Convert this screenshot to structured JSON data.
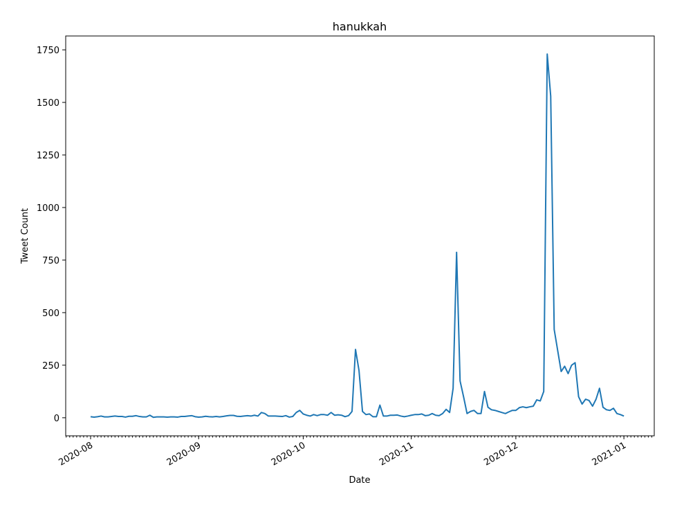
{
  "chart_data": {
    "type": "line",
    "title": "hanukkah",
    "x_label": "Date",
    "y_label": "Tweet Count",
    "color": "#1f77b4",
    "categories": [
      "2020-08",
      null,
      null,
      null,
      null,
      null,
      null,
      null,
      null,
      null,
      null,
      null,
      null,
      null,
      null,
      null,
      null,
      null,
      null,
      null,
      null,
      null,
      null,
      null,
      null,
      null,
      null,
      null,
      null,
      null,
      null,
      "2020-09",
      null,
      null,
      null,
      null,
      null,
      null,
      null,
      null,
      null,
      null,
      null,
      null,
      null,
      null,
      null,
      null,
      null,
      null,
      null,
      null,
      null,
      null,
      null,
      null,
      null,
      null,
      null,
      null,
      null,
      "2020-10",
      null,
      null,
      null,
      null,
      null,
      null,
      null,
      null,
      null,
      null,
      null,
      null,
      null,
      null,
      null,
      null,
      null,
      null,
      null,
      null,
      null,
      null,
      null,
      null,
      null,
      null,
      null,
      null,
      null,
      null,
      "2020-11",
      null,
      null,
      null,
      null,
      null,
      null,
      null,
      null,
      null,
      null,
      null,
      null,
      null,
      null,
      null,
      null,
      null,
      null,
      null,
      null,
      null,
      null,
      null,
      null,
      null,
      null,
      null,
      null,
      null,
      "2020-12",
      null,
      null,
      null,
      null,
      null,
      null,
      null,
      null,
      null,
      null,
      null,
      null,
      null,
      null,
      null,
      null,
      null,
      null,
      null,
      null,
      null,
      null,
      null,
      null,
      null,
      null,
      null,
      null,
      null,
      null,
      "2021-01"
    ],
    "values": [
      5,
      3,
      5,
      8,
      4,
      4,
      6,
      8,
      6,
      6,
      3,
      7,
      7,
      10,
      6,
      4,
      4,
      12,
      2,
      4,
      4,
      4,
      3,
      4,
      4,
      3,
      6,
      6,
      8,
      10,
      5,
      3,
      4,
      7,
      5,
      4,
      6,
      4,
      6,
      9,
      11,
      11,
      7,
      6,
      8,
      10,
      8,
      12,
      8,
      25,
      20,
      8,
      8,
      8,
      7,
      6,
      10,
      3,
      6,
      25,
      35,
      18,
      12,
      8,
      15,
      10,
      15,
      15,
      12,
      25,
      12,
      14,
      12,
      5,
      10,
      30,
      325,
      225,
      30,
      15,
      18,
      5,
      5,
      60,
      8,
      8,
      12,
      12,
      13,
      8,
      5,
      8,
      12,
      15,
      15,
      18,
      10,
      12,
      20,
      12,
      10,
      20,
      40,
      25,
      140,
      787,
      175,
      100,
      20,
      30,
      35,
      20,
      20,
      125,
      50,
      38,
      35,
      30,
      25,
      20,
      28,
      35,
      35,
      48,
      52,
      48,
      52,
      55,
      85,
      80,
      125,
      1730,
      1530,
      420,
      320,
      220,
      245,
      210,
      250,
      262,
      100,
      65,
      88,
      82,
      55,
      88,
      140,
      50,
      38,
      35,
      45,
      20,
      15,
      8
    ],
    "ylim": [
      -86,
      1816
    ],
    "yticks": [
      0,
      250,
      500,
      750,
      1000,
      1250,
      1500,
      1750
    ]
  }
}
